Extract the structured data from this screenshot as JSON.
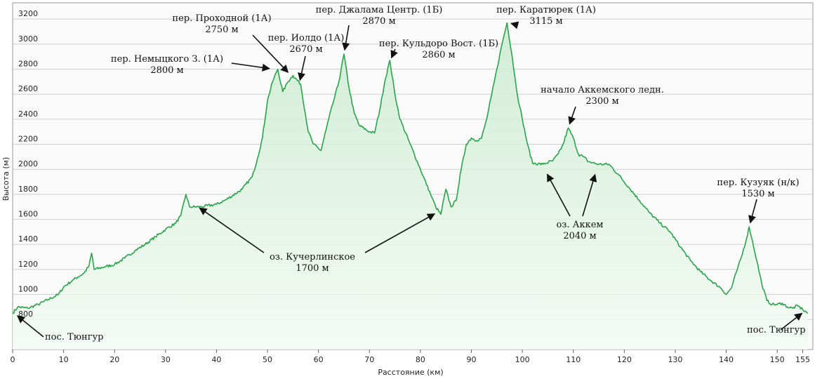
{
  "chart_data": {
    "type": "area",
    "xlabel": "Расстояние  (км)",
    "ylabel": "Высота (м)",
    "xlim": [
      0,
      157
    ],
    "ylim": [
      560,
      3330
    ],
    "x_ticks": [
      0,
      10,
      20,
      30,
      40,
      50,
      60,
      70,
      80,
      90,
      100,
      110,
      120,
      130,
      140,
      150,
      155
    ],
    "y_ticks": [
      800,
      1000,
      1200,
      1400,
      1600,
      1800,
      2000,
      2200,
      2400,
      2600,
      2800,
      3000,
      3200
    ],
    "grid": true,
    "line_color": "#2aa44a",
    "fill_color": "#e6f5e8",
    "series": [
      {
        "points": [
          [
            0,
            850
          ],
          [
            1,
            900
          ],
          [
            3,
            890
          ],
          [
            5,
            920
          ],
          [
            7,
            960
          ],
          [
            9,
            1000
          ],
          [
            10,
            1060
          ],
          [
            12,
            1120
          ],
          [
            14,
            1170
          ],
          [
            15,
            1230
          ],
          [
            15.5,
            1330
          ],
          [
            16,
            1200
          ],
          [
            18,
            1220
          ],
          [
            20,
            1240
          ],
          [
            22,
            1290
          ],
          [
            24,
            1350
          ],
          [
            26,
            1400
          ],
          [
            28,
            1460
          ],
          [
            30,
            1520
          ],
          [
            32,
            1570
          ],
          [
            33,
            1630
          ],
          [
            34,
            1800
          ],
          [
            34.7,
            1700
          ],
          [
            37,
            1700
          ],
          [
            40,
            1720
          ],
          [
            42,
            1760
          ],
          [
            45,
            1840
          ],
          [
            47,
            1940
          ],
          [
            48,
            2080
          ],
          [
            49,
            2250
          ],
          [
            50,
            2550
          ],
          [
            51,
            2700
          ],
          [
            52,
            2800
          ],
          [
            53,
            2620
          ],
          [
            54,
            2700
          ],
          [
            55,
            2750
          ],
          [
            56.5,
            2680
          ],
          [
            58,
            2300
          ],
          [
            59,
            2200
          ],
          [
            60.5,
            2150
          ],
          [
            62,
            2400
          ],
          [
            63,
            2550
          ],
          [
            64,
            2700
          ],
          [
            65,
            2920
          ],
          [
            66,
            2650
          ],
          [
            67,
            2450
          ],
          [
            68,
            2350
          ],
          [
            70,
            2300
          ],
          [
            71,
            2290
          ],
          [
            72,
            2470
          ],
          [
            73,
            2700
          ],
          [
            74,
            2870
          ],
          [
            75,
            2600
          ],
          [
            76,
            2400
          ],
          [
            78,
            2200
          ],
          [
            80,
            2000
          ],
          [
            82,
            1800
          ],
          [
            83,
            1700
          ],
          [
            84,
            1640
          ],
          [
            85,
            1840
          ],
          [
            86,
            1700
          ],
          [
            87,
            1750
          ],
          [
            88,
            2000
          ],
          [
            89,
            2200
          ],
          [
            90,
            2250
          ],
          [
            91,
            2230
          ],
          [
            92,
            2250
          ],
          [
            93,
            2400
          ],
          [
            94,
            2600
          ],
          [
            95,
            2800
          ],
          [
            96,
            3000
          ],
          [
            97,
            3170
          ],
          [
            98,
            2900
          ],
          [
            99,
            2600
          ],
          [
            100,
            2400
          ],
          [
            101,
            2200
          ],
          [
            102,
            2050
          ],
          [
            104,
            2040
          ],
          [
            106,
            2070
          ],
          [
            107,
            2120
          ],
          [
            108,
            2200
          ],
          [
            109,
            2330
          ],
          [
            110,
            2250
          ],
          [
            111,
            2120
          ],
          [
            112,
            2100
          ],
          [
            113,
            2060
          ],
          [
            115,
            2040
          ],
          [
            117,
            2040
          ],
          [
            119,
            1950
          ],
          [
            121,
            1850
          ],
          [
            123,
            1750
          ],
          [
            125,
            1650
          ],
          [
            127,
            1570
          ],
          [
            129,
            1500
          ],
          [
            131,
            1380
          ],
          [
            133,
            1270
          ],
          [
            135,
            1180
          ],
          [
            137,
            1110
          ],
          [
            139,
            1050
          ],
          [
            140,
            1000
          ],
          [
            141,
            1050
          ],
          [
            142,
            1180
          ],
          [
            143,
            1300
          ],
          [
            144,
            1450
          ],
          [
            144.5,
            1540
          ],
          [
            145,
            1450
          ],
          [
            146,
            1270
          ],
          [
            147,
            1080
          ],
          [
            148,
            950
          ],
          [
            149,
            920
          ],
          [
            150,
            920
          ],
          [
            151,
            930
          ],
          [
            152,
            900
          ],
          [
            153,
            890
          ],
          [
            154,
            910
          ],
          [
            155,
            880
          ],
          [
            156,
            850
          ]
        ]
      }
    ],
    "annotations": [
      {
        "lines": [
          "пер. Немыцкого З. (1А)",
          "2800 м"
        ],
        "point": [
          51.2,
          2800
        ]
      },
      {
        "lines": [
          "пер. Проходной (1А)",
          "2750 м"
        ],
        "point": [
          54.6,
          2750
        ]
      },
      {
        "lines": [
          "пер. Иолдо (1А)",
          "2670 м"
        ],
        "point": [
          56.2,
          2680
        ]
      },
      {
        "lines": [
          "пер. Джалама Центр. (1Б)",
          "2870 м"
        ],
        "point": [
          65,
          2920
        ]
      },
      {
        "lines": [
          "пер. Кульдоро Вост. (1Б)",
          "2860 м"
        ],
        "point": [
          74,
          2860
        ]
      },
      {
        "lines": [
          "пер. Каратюрек (1А)",
          "3115 м"
        ],
        "point": [
          97,
          3175
        ]
      },
      {
        "lines": [
          "начало Аккемского ледн.",
          "2300 м"
        ],
        "point": [
          109,
          2330
        ]
      },
      {
        "lines": [
          "пер. Кузуяк (н/к)",
          "1530 м"
        ],
        "point": [
          144.5,
          1540
        ]
      },
      {
        "lines": [
          "оз. Кучерлинское",
          "1700 м"
        ],
        "points": [
          [
            36,
            1710
          ],
          [
            83.5,
            1660
          ]
        ]
      },
      {
        "lines": [
          "оз. Аккем",
          "2040 м"
        ],
        "points": [
          [
            104.5,
            1990
          ],
          [
            114.5,
            1990
          ]
        ]
      },
      {
        "lines": [
          "пос. Тюнгур"
        ],
        "point": [
          0.3,
          850
        ]
      },
      {
        "lines": [
          "пос. Тюнгур"
        ],
        "point": [
          155.5,
          870
        ]
      }
    ]
  }
}
